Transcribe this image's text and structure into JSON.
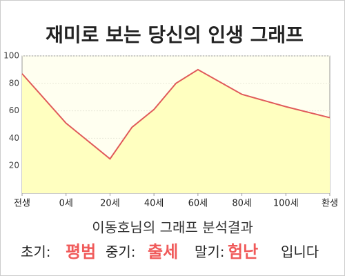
{
  "chart_data": {
    "type": "area",
    "title": "재미로 보는 당신의 인생 그래프",
    "x": [
      -20,
      0,
      20,
      30,
      40,
      50,
      60,
      80,
      100,
      120
    ],
    "values": [
      87,
      51,
      25,
      48,
      61,
      80,
      90,
      72,
      63,
      55
    ],
    "color": "#e05a5a",
    "fill_color": "#ffffc0",
    "xlim": [
      -20,
      120
    ],
    "xticks": [
      {
        "value": -20,
        "label": "전생"
      },
      {
        "value": 0,
        "label": "0세"
      },
      {
        "value": 20,
        "label": "20세"
      },
      {
        "value": 40,
        "label": "40세"
      },
      {
        "value": 60,
        "label": "60세"
      },
      {
        "value": 80,
        "label": "80세"
      },
      {
        "value": 100,
        "label": "100세"
      },
      {
        "value": 120,
        "label": "환생"
      }
    ],
    "ylim": [
      0,
      100
    ],
    "yticks": [
      20,
      40,
      60,
      80,
      100
    ],
    "grid": true
  },
  "result": {
    "heading": "이동호님의 그래프 분석결과",
    "early_label": "초기:",
    "early": "평범",
    "middle_label": "중기:",
    "middle": "출세",
    "late_label": "말기:",
    "late": "험난",
    "suffix": "입니다"
  }
}
